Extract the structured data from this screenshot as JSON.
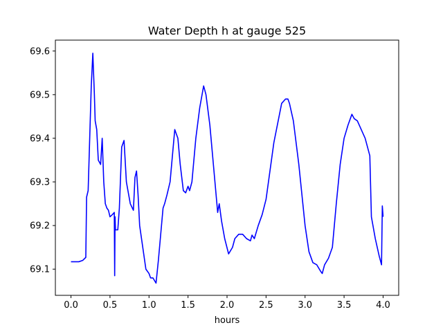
{
  "chart_data": {
    "type": "line",
    "title": "Water Depth h at gauge 525",
    "xlabel": "hours",
    "ylabel": "",
    "xlim": [
      -0.2,
      4.2
    ],
    "ylim": [
      69.04,
      69.625
    ],
    "xticks": [
      0.0,
      0.5,
      1.0,
      1.5,
      2.0,
      2.5,
      3.0,
      3.5,
      4.0
    ],
    "xtick_labels": [
      "0.0",
      "0.5",
      "1.0",
      "1.5",
      "2.0",
      "2.5",
      "3.0",
      "3.5",
      "4.0"
    ],
    "yticks": [
      69.1,
      69.2,
      69.3,
      69.4,
      69.5,
      69.6
    ],
    "ytick_labels": [
      "69.1",
      "69.2",
      "69.3",
      "69.4",
      "69.5",
      "69.6"
    ],
    "grid": false,
    "line_color": "#0000ff",
    "series": [
      {
        "x": [
          0.0,
          0.1,
          0.15,
          0.19,
          0.2,
          0.22,
          0.24,
          0.26,
          0.28,
          0.3,
          0.31,
          0.33,
          0.35,
          0.38,
          0.4,
          0.42,
          0.44,
          0.46,
          0.48,
          0.5,
          0.53,
          0.555,
          0.56,
          0.565,
          0.57,
          0.6,
          0.62,
          0.65,
          0.68,
          0.71,
          0.73,
          0.76,
          0.8,
          0.82,
          0.84,
          0.86,
          0.88,
          0.92,
          0.96,
          1.0,
          1.02,
          1.05,
          1.09,
          1.12,
          1.18,
          1.2,
          1.23,
          1.27,
          1.33,
          1.37,
          1.4,
          1.44,
          1.47,
          1.5,
          1.52,
          1.55,
          1.6,
          1.65,
          1.7,
          1.73,
          1.78,
          1.84,
          1.88,
          1.9,
          1.93,
          1.97,
          2.02,
          2.07,
          2.1,
          2.15,
          2.2,
          2.25,
          2.3,
          2.32,
          2.35,
          2.4,
          2.45,
          2.5,
          2.6,
          2.7,
          2.75,
          2.78,
          2.8,
          2.85,
          2.92,
          3.0,
          3.05,
          3.1,
          3.15,
          3.2,
          3.22,
          3.25,
          3.3,
          3.35,
          3.4,
          3.45,
          3.5,
          3.55,
          3.6,
          3.63,
          3.67,
          3.72,
          3.77,
          3.83,
          3.85,
          3.86,
          3.9,
          3.95,
          3.98,
          3.99,
          4.0
        ],
        "y": [
          69.117,
          69.117,
          69.12,
          69.127,
          69.265,
          69.28,
          69.4,
          69.52,
          69.595,
          69.5,
          69.44,
          69.42,
          69.35,
          69.34,
          69.4,
          69.3,
          69.25,
          69.24,
          69.235,
          69.22,
          69.225,
          69.23,
          69.085,
          69.22,
          69.19,
          69.19,
          69.24,
          69.38,
          69.395,
          69.3,
          69.28,
          69.25,
          69.235,
          69.31,
          69.325,
          69.27,
          69.2,
          69.15,
          69.1,
          69.09,
          69.08,
          69.08,
          69.068,
          69.12,
          69.24,
          69.25,
          69.27,
          69.3,
          69.42,
          69.4,
          69.34,
          69.28,
          69.275,
          69.29,
          69.28,
          69.3,
          69.4,
          69.47,
          69.52,
          69.5,
          69.43,
          69.31,
          69.23,
          69.25,
          69.21,
          69.17,
          69.135,
          69.15,
          69.17,
          69.18,
          69.18,
          69.17,
          69.165,
          69.178,
          69.17,
          69.2,
          69.225,
          69.26,
          69.39,
          69.48,
          69.49,
          69.49,
          69.48,
          69.44,
          69.34,
          69.2,
          69.14,
          69.115,
          69.11,
          69.095,
          69.09,
          69.11,
          69.125,
          69.15,
          69.25,
          69.34,
          69.4,
          69.43,
          69.455,
          69.445,
          69.44,
          69.42,
          69.4,
          69.36,
          69.22,
          69.21,
          69.17,
          69.13,
          69.11,
          69.245,
          69.22
        ]
      }
    ]
  }
}
